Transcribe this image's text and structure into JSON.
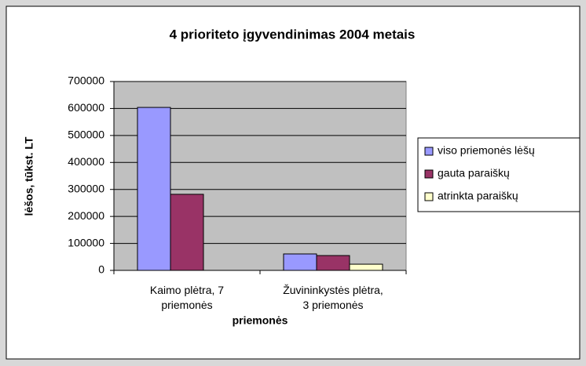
{
  "chart_data": {
    "type": "bar",
    "title": "4 prioriteto įgyvendinimas 2004 metais",
    "x_label": "priemonės",
    "y_label": "lėšos, tūkst. LT",
    "categories": [
      "Kaimo plėtra, 7 priemonės",
      "Žuvininkystės plėtra, 3 priemonės"
    ],
    "series": [
      {
        "name": "viso priemonės lėšų",
        "color": "#9999ff",
        "values": [
          604000,
          61000
        ]
      },
      {
        "name": "gauta paraiškų",
        "color": "#993366",
        "values": [
          282000,
          55000
        ]
      },
      {
        "name": "atrinkta paraiškų",
        "color": "#ffffcc",
        "values": [
          0,
          23000
        ]
      }
    ],
    "ylim": [
      0,
      700000
    ],
    "yticks": [
      0,
      100000,
      200000,
      300000,
      400000,
      500000,
      600000,
      700000
    ],
    "legend": "right"
  }
}
